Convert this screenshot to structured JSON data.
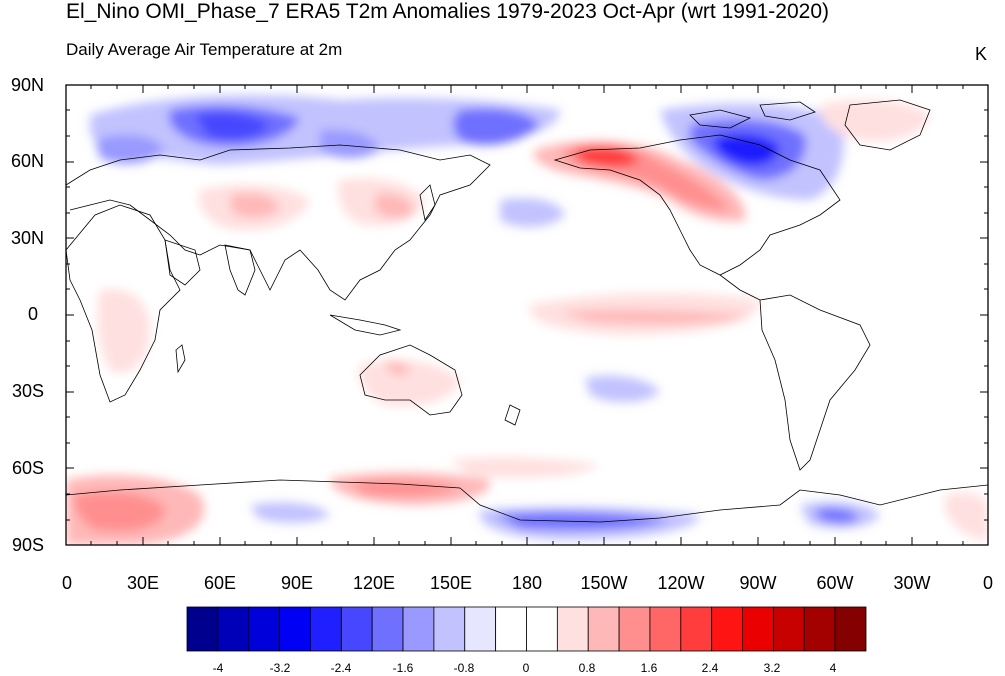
{
  "title": "El_Nino OMI_Phase_7 ERA5 T2m Anomalies 1979-2023 Oct-Apr (wrt 1991-2020)",
  "subtitle": "Daily Average Air Temperature at 2m",
  "units": "K",
  "lat_labels": [
    "90N",
    "60N",
    "30N",
    "0",
    "30S",
    "60S",
    "90S"
  ],
  "lon_labels": [
    "0",
    "30E",
    "60E",
    "90E",
    "120E",
    "150E",
    "180",
    "150W",
    "120W",
    "90W",
    "60W",
    "30W",
    "0"
  ],
  "colorbar": {
    "labels": [
      "-4",
      "-3.2",
      "-2.4",
      "-1.6",
      "-0.8",
      "0",
      "0.8",
      "1.6",
      "2.4",
      "3.2",
      "4"
    ],
    "colors": [
      "#00008f",
      "#0000b8",
      "#0000db",
      "#0000f5",
      "#1f1fff",
      "#4747ff",
      "#7070ff",
      "#9999ff",
      "#c2c2ff",
      "#e6e6ff",
      "#ffffff",
      "#ffffff",
      "#ffe0e0",
      "#ffb8b8",
      "#ff8f8f",
      "#ff6666",
      "#ff3d3d",
      "#ff1414",
      "#eb0000",
      "#c70000",
      "#a30000",
      "#850000"
    ]
  },
  "anomaly_regions": [
    {
      "name": "alaska-warm",
      "color": "#ff3d3d"
    },
    {
      "name": "canada-cold",
      "color": "#1f1fff"
    },
    {
      "name": "siberia-cold",
      "color": "#4747ff"
    },
    {
      "name": "antarctic-warm",
      "color": "#ff8f8f"
    },
    {
      "name": "antarctic-cold",
      "color": "#4747ff"
    },
    {
      "name": "equatorial-pacific-warm",
      "color": "#ffb8b8"
    }
  ]
}
